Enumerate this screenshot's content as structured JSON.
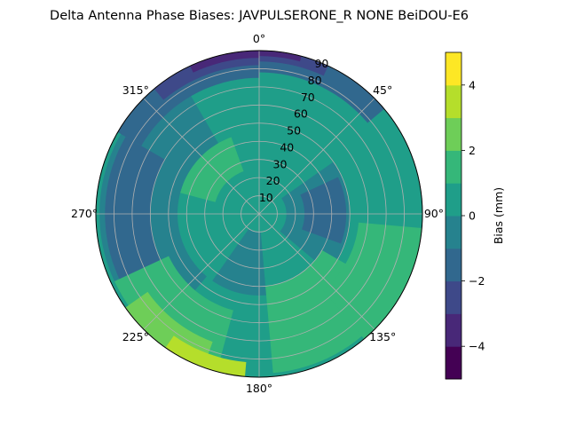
{
  "chart_data": {
    "type": "heatmap",
    "subtype": "polar-contour",
    "title": "Delta Antenna Phase Biases: JAVPULSERONE_R  NONE BeiDOU-E6",
    "angular_axis": {
      "zero_location": "top",
      "direction": "clockwise",
      "tick_labels": [
        "0°",
        "45°",
        "90°",
        "135°",
        "180°",
        "225°",
        "270°",
        "315°"
      ]
    },
    "radial_axis": {
      "range": [
        0,
        90
      ],
      "ticks": [
        10,
        20,
        30,
        40,
        50,
        60,
        70,
        80,
        90
      ],
      "tick_labels": [
        "10",
        "20",
        "30",
        "40",
        "50",
        "60",
        "70",
        "80",
        "90"
      ]
    },
    "grid": true,
    "colorbar": {
      "label": "Bias (mm)",
      "range": [
        -5,
        5
      ],
      "ticks": [
        -4,
        -2,
        0,
        2,
        4
      ],
      "tick_labels": [
        "−4",
        "−2",
        "0",
        "2",
        "4"
      ],
      "levels": [
        -5,
        -4,
        -3,
        -2,
        -1,
        0,
        1,
        2,
        3,
        4,
        5
      ],
      "colors": [
        "#440154",
        "#482878",
        "#3e4989",
        "#31688e",
        "#26828e",
        "#1f9e89",
        "#35b779",
        "#6ece58",
        "#b5de2b",
        "#fde725"
      ]
    },
    "regions": [
      {
        "description": "base field",
        "az_range": [
          0,
          360
        ],
        "r_range": [
          0,
          90
        ],
        "level_bin": [
          0,
          1
        ]
      },
      {
        "az_range": [
          55,
          130
        ],
        "r_range": [
          15,
          50
        ],
        "level_bin": [
          -1,
          0
        ]
      },
      {
        "az_range": [
          65,
          110
        ],
        "r_range": [
          25,
          48
        ],
        "level_bin": [
          -2,
          -1
        ]
      },
      {
        "az_range": [
          175,
          215
        ],
        "r_range": [
          10,
          45
        ],
        "level_bin": [
          -1,
          0
        ]
      },
      {
        "az_range": [
          220,
          330
        ],
        "r_range": [
          45,
          88
        ],
        "level_bin": [
          -1,
          0
        ]
      },
      {
        "az_range": [
          240,
          300
        ],
        "r_range": [
          60,
          85
        ],
        "level_bin": [
          -2,
          -1
        ]
      },
      {
        "az_range": [
          285,
          340
        ],
        "r_range": [
          25,
          45
        ],
        "level_bin": [
          1,
          2
        ]
      },
      {
        "az_range": [
          300,
          360
        ],
        "r_range": [
          75,
          90
        ],
        "level_bin": [
          -2,
          -1
        ]
      },
      {
        "az_range": [
          0,
          50
        ],
        "r_range": [
          78,
          90
        ],
        "level_bin": [
          -2,
          -1
        ]
      },
      {
        "az_range": [
          320,
          360
        ],
        "r_range": [
          82,
          90
        ],
        "level_bin": [
          -3,
          -2
        ]
      },
      {
        "az_range": [
          0,
          25
        ],
        "r_range": [
          84,
          90
        ],
        "level_bin": [
          -3,
          -2
        ]
      },
      {
        "az_range": [
          335,
          360
        ],
        "r_range": [
          86,
          90
        ],
        "level_bin": [
          -4,
          -3
        ]
      },
      {
        "az_range": [
          0,
          15
        ],
        "r_range": [
          87,
          90
        ],
        "level_bin": [
          -4,
          -3
        ]
      },
      {
        "az_range": [
          195,
          245
        ],
        "r_range": [
          55,
          88
        ],
        "level_bin": [
          1,
          2
        ]
      },
      {
        "az_range": [
          200,
          235
        ],
        "r_range": [
          75,
          90
        ],
        "level_bin": [
          2,
          3
        ]
      },
      {
        "az_range": [
          185,
          215
        ],
        "r_range": [
          82,
          90
        ],
        "level_bin": [
          3,
          4
        ]
      },
      {
        "az_range": [
          120,
          175
        ],
        "r_range": [
          40,
          88
        ],
        "level_bin": [
          1,
          2
        ]
      },
      {
        "az_range": [
          95,
          140
        ],
        "r_range": [
          55,
          90
        ],
        "level_bin": [
          1,
          2
        ]
      }
    ]
  }
}
